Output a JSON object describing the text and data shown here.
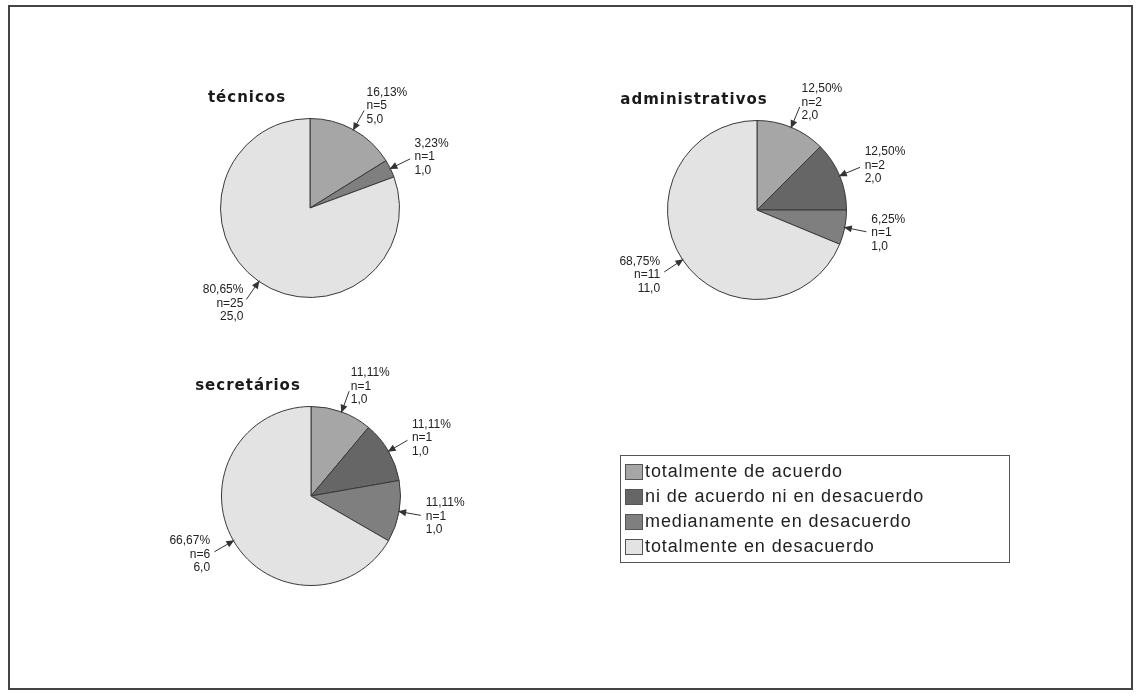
{
  "chart_data": {
    "type": "pie",
    "categories": [
      "totalmente de acuerdo",
      "ni de acuerdo ni en desacuerdo",
      "medianamente en desacuerdo",
      "totalmente en desacuerdo"
    ],
    "colors": [
      "#a6a6a6",
      "#666666",
      "#7f7f7f",
      "#e3e3e3"
    ],
    "legend": "right",
    "series": [
      {
        "name": "técnicos",
        "values": [
          5,
          0,
          1,
          25
        ],
        "value_labels": [
          "16,13%\nn=5\n5,0",
          null,
          "3,23%\nn=1\n1,0",
          "80,65%\nn=25\n25,0"
        ]
      },
      {
        "name": "administrativos",
        "values": [
          2,
          2,
          1,
          11
        ],
        "value_labels": [
          "12,50%\nn=2\n2,0",
          "12,50%\nn=2\n2,0",
          "6,25%\nn=1\n1,0",
          "68,75%\nn=11\n11,0"
        ]
      },
      {
        "name": "secretários",
        "values": [
          1,
          1,
          1,
          6
        ],
        "value_labels": [
          "11,11%\nn=1\n1,0",
          "11,11%\nn=1\n1,0",
          "11,11%\nn=1\n1,0",
          "66,67%\nn=6\n6,0"
        ]
      }
    ]
  }
}
